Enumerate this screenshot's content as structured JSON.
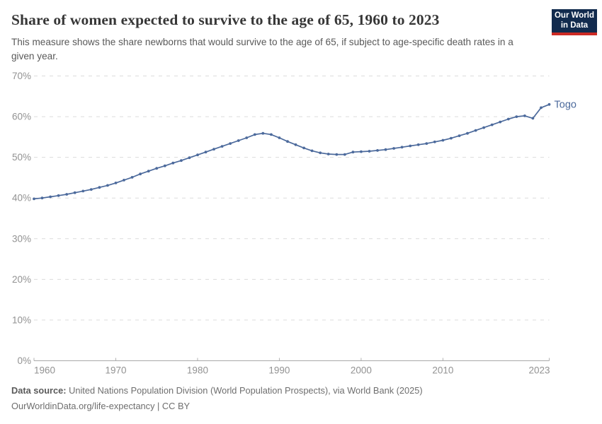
{
  "header": {
    "title": "Share of women expected to survive to the age of 65, 1960 to 2023",
    "subtitle": "This measure shows the share newborns that would survive to the age of 65, if subject to age-specific death rates in a given year.",
    "logo": {
      "line1": "Our World",
      "line2": "in Data",
      "bg_color": "#122B4E",
      "accent_color": "#CC2A24"
    }
  },
  "chart_data": {
    "type": "line",
    "title": "Share of women expected to survive to the age of 65, 1960 to 2023",
    "xlabel": "",
    "ylabel": "",
    "unit": "%",
    "ylim": [
      0,
      70
    ],
    "yticks": [
      0,
      10,
      20,
      30,
      40,
      50,
      60,
      70
    ],
    "ytick_suffix": "%",
    "xticks": [
      1960,
      1970,
      1980,
      1990,
      2000,
      2010,
      2023
    ],
    "grid": "horizontal-dashed",
    "legend_position": "end-of-line-label",
    "line_color": "#4C6A9C",
    "x": [
      1960,
      1961,
      1962,
      1963,
      1964,
      1965,
      1966,
      1967,
      1968,
      1969,
      1970,
      1971,
      1972,
      1973,
      1974,
      1975,
      1976,
      1977,
      1978,
      1979,
      1980,
      1981,
      1982,
      1983,
      1984,
      1985,
      1986,
      1987,
      1988,
      1989,
      1990,
      1991,
      1992,
      1993,
      1994,
      1995,
      1996,
      1997,
      1998,
      1999,
      2000,
      2001,
      2002,
      2003,
      2004,
      2005,
      2006,
      2007,
      2008,
      2009,
      2010,
      2011,
      2012,
      2013,
      2014,
      2015,
      2016,
      2017,
      2018,
      2019,
      2020,
      2021,
      2022,
      2023
    ],
    "series": [
      {
        "name": "Togo",
        "values": [
          39.8,
          40.0,
          40.3,
          40.6,
          40.9,
          41.3,
          41.7,
          42.1,
          42.6,
          43.1,
          43.7,
          44.4,
          45.1,
          45.9,
          46.6,
          47.3,
          47.9,
          48.6,
          49.2,
          49.9,
          50.6,
          51.3,
          52.0,
          52.7,
          53.4,
          54.1,
          54.8,
          55.6,
          55.9,
          55.6,
          54.8,
          53.9,
          53.1,
          52.3,
          51.6,
          51.1,
          50.8,
          50.7,
          50.7,
          51.3,
          51.4,
          51.5,
          51.7,
          51.9,
          52.2,
          52.5,
          52.8,
          53.1,
          53.4,
          53.8,
          54.2,
          54.7,
          55.3,
          55.9,
          56.6,
          57.3,
          58.0,
          58.7,
          59.4,
          60.0,
          60.2,
          59.6,
          62.2,
          63.0
        ]
      }
    ]
  },
  "footer": {
    "datasource_label": "Data source:",
    "datasource_text": " United Nations Population Division (World Population Prospects), via World Bank (2025)",
    "link_text": "OurWorldinData.org/life-expectancy",
    "separator": " | ",
    "license": "CC BY"
  }
}
